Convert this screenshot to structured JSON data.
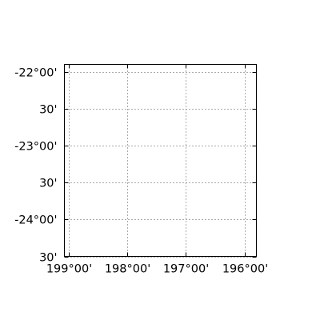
{
  "chart_data": {
    "type": "scatter",
    "title": "",
    "xlabel": "",
    "ylabel": "",
    "xlim": [
      199.07,
      195.8
    ],
    "ylim": [
      -24.5,
      -21.9
    ],
    "grid": true,
    "grid_style": "dotted",
    "x_ticks": [
      {
        "value": 199.0,
        "label": "199°00'"
      },
      {
        "value": 198.0,
        "label": "198°00'"
      },
      {
        "value": 197.0,
        "label": "197°00'"
      },
      {
        "value": 196.0,
        "label": "196°00'"
      }
    ],
    "y_ticks": [
      {
        "value": -22.0,
        "label": "-22°00'"
      },
      {
        "value": -22.5,
        "label": "30'"
      },
      {
        "value": -23.0,
        "label": "-23°00'"
      },
      {
        "value": -23.5,
        "label": "30'"
      },
      {
        "value": -24.0,
        "label": "-24°00'"
      },
      {
        "value": -24.5,
        "label": "30'"
      }
    ],
    "series": []
  },
  "colors": {
    "axes": "#000000",
    "grid": "#555555",
    "background": "#ffffff"
  }
}
